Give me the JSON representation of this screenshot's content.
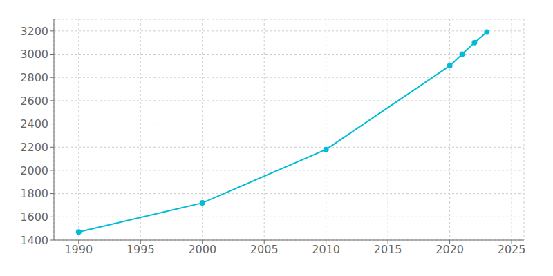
{
  "chart_data": {
    "type": "line",
    "x": [
      1990,
      2000,
      2010,
      2020,
      2021,
      2022,
      2023
    ],
    "values": [
      1470,
      1720,
      2180,
      2900,
      3000,
      3100,
      3190
    ],
    "color": "#00BCD4",
    "marker": "circle",
    "xlim": [
      1988,
      2026
    ],
    "ylim": [
      1400,
      3300
    ],
    "xticks": [
      1990,
      1995,
      2000,
      2005,
      2010,
      2015,
      2020,
      2025
    ],
    "yticks": [
      1400,
      1600,
      1800,
      2000,
      2200,
      2400,
      2600,
      2800,
      3000,
      3200
    ],
    "grid": true
  }
}
